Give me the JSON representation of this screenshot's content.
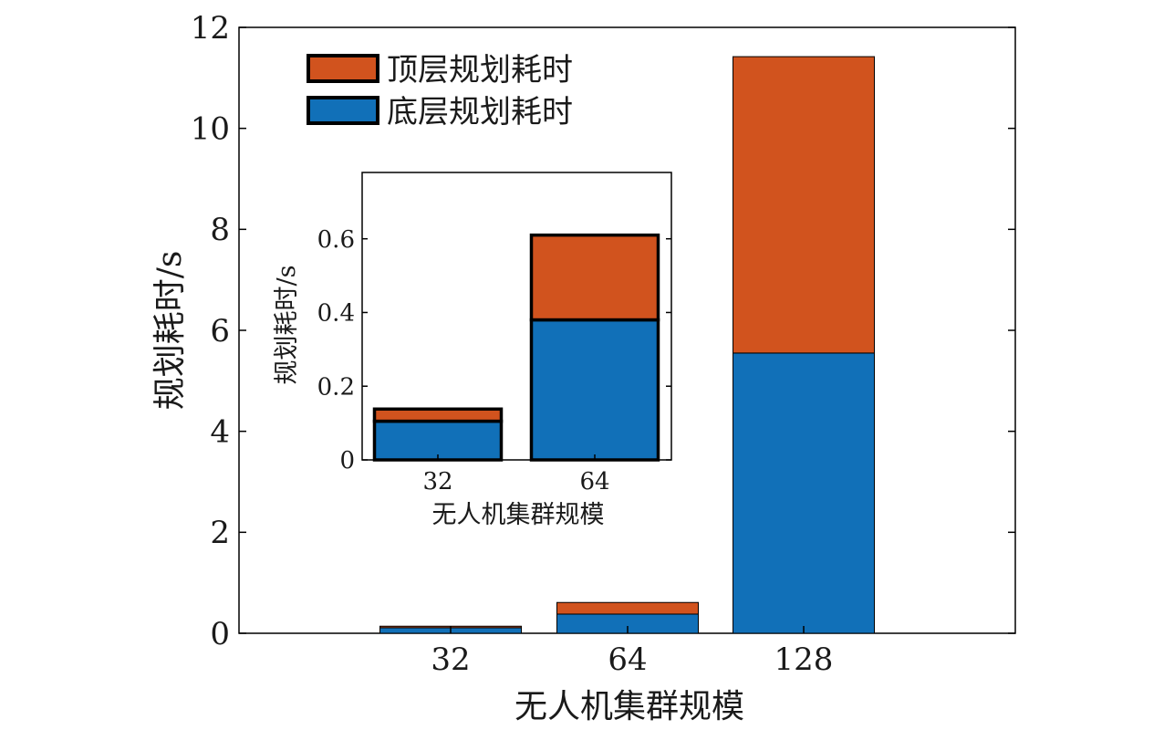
{
  "chart_data": [
    {
      "type": "bar",
      "stacked": true,
      "categories": [
        "32",
        "64",
        "128"
      ],
      "series": [
        {
          "name": "底层规划耗时",
          "values": [
            0.11,
            0.38,
            5.55
          ],
          "color": "#1170b8"
        },
        {
          "name": "顶层规划耗时",
          "values": [
            0.03,
            0.23,
            5.87
          ],
          "color": "#d1531e"
        }
      ],
      "xlabel": "无人机集群规模",
      "ylabel": "规划耗时/s",
      "ylim": [
        0,
        12
      ],
      "yticks": [
        "0",
        "2",
        "4",
        "6",
        "8",
        "10",
        "12"
      ],
      "grid": false,
      "legend": "top-left"
    },
    {
      "type": "bar",
      "stacked": true,
      "inset": true,
      "categories": [
        "32",
        "64"
      ],
      "series": [
        {
          "name": "底层规划耗时",
          "values": [
            0.105,
            0.38
          ],
          "color": "#1170b8"
        },
        {
          "name": "顶层规划耗时",
          "values": [
            0.033,
            0.23
          ],
          "color": "#d1531e"
        }
      ],
      "xlabel": "无人机集群规模",
      "ylabel": "规划耗时/s",
      "ylim": [
        0,
        0.78
      ],
      "yticks": [
        "0",
        "0.2",
        "0.4",
        "0.6"
      ],
      "grid": false
    }
  ]
}
